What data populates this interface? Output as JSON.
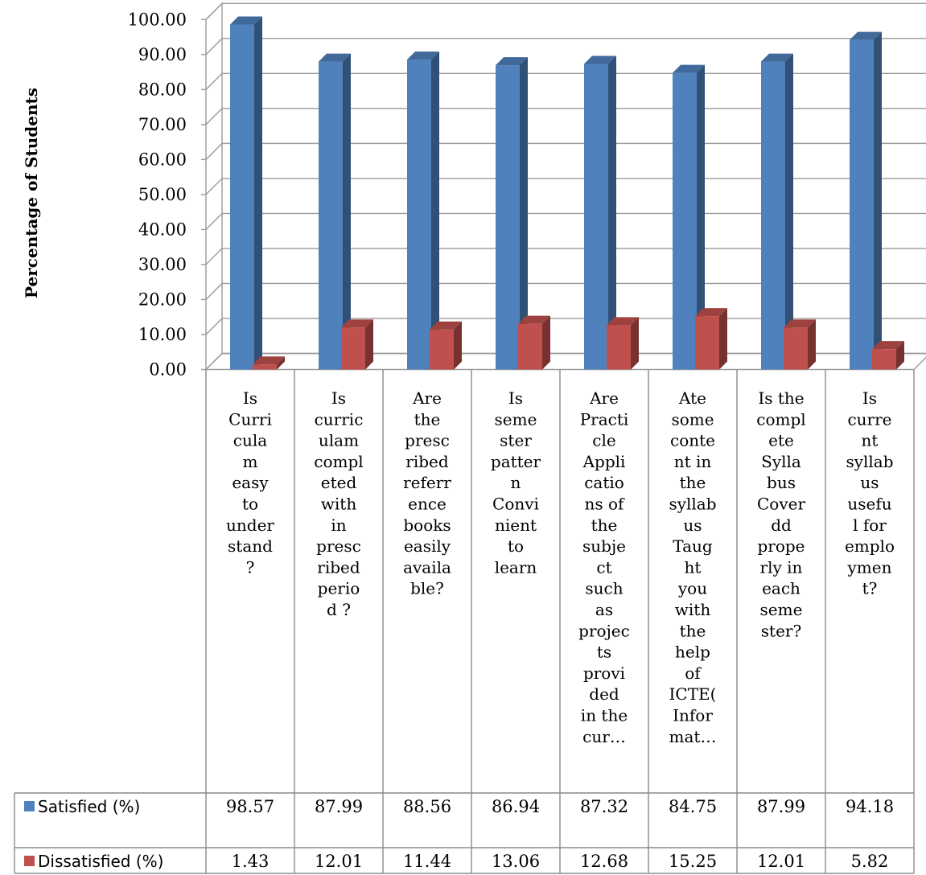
{
  "chart_data": {
    "type": "bar",
    "title": "",
    "xlabel": "",
    "ylabel": "Percentage of Students",
    "ylim": [
      0,
      100
    ],
    "yticks": [
      "0.00",
      "10.00",
      "20.00",
      "30.00",
      "40.00",
      "50.00",
      "60.00",
      "70.00",
      "80.00",
      "90.00",
      "100.00"
    ],
    "grid": true,
    "legend": "data-table-left",
    "categories": [
      [
        "Is",
        "Curri",
        "cula",
        "m",
        "easy",
        "to",
        "under",
        "stand",
        "?"
      ],
      [
        "Is",
        "curric",
        "ulam",
        "compl",
        "eted",
        "with",
        "in",
        "presc",
        "ribed",
        "perio",
        "d ?"
      ],
      [
        "Are",
        "the",
        "presc",
        "ribed",
        "referr",
        "ence",
        "books",
        "easily",
        "availa",
        "ble?"
      ],
      [
        "Is",
        "seme",
        "ster",
        "patter",
        "n",
        "Convi",
        "nient",
        "to",
        "learn"
      ],
      [
        "Are",
        "Practi",
        "cle",
        "Appli",
        "catio",
        "ns of",
        "the",
        "subje",
        "ct",
        "such",
        "as",
        "projec",
        "ts",
        "provi",
        "ded",
        "in the",
        "cur…"
      ],
      [
        "Ate",
        "some",
        "conte",
        "nt in",
        "the",
        "syllab",
        "us",
        "Taug",
        "ht",
        "you",
        "with",
        "the",
        "help",
        "of",
        "ICTE(",
        "Infor",
        "mat…"
      ],
      [
        "Is the",
        "compl",
        "ete",
        "Sylla",
        "bus",
        "Cover",
        "dd",
        "prope",
        "rly in",
        "each",
        "seme",
        "ster?"
      ],
      [
        "Is",
        "curre",
        "nt",
        "syllab",
        "us",
        "usefu",
        "l for",
        "emplo",
        "ymen",
        "t?"
      ]
    ],
    "series": [
      {
        "name": "Satisfied (%)",
        "color": "#4F81BD",
        "values": [
          98.57,
          87.99,
          88.56,
          86.94,
          87.32,
          84.75,
          87.99,
          94.18
        ],
        "labels": [
          "98.57",
          "87.99",
          "88.56",
          "86.94",
          "87.32",
          "84.75",
          "87.99",
          "94.18"
        ]
      },
      {
        "name": "Dissatisfied (%)",
        "color": "#C0504D",
        "values": [
          1.43,
          12.01,
          11.44,
          13.06,
          12.68,
          15.25,
          12.01,
          5.82
        ],
        "labels": [
          "1.43",
          "12.01",
          "11.44",
          "13.06",
          "12.68",
          "15.25",
          "12.01",
          "5.82"
        ]
      }
    ]
  }
}
